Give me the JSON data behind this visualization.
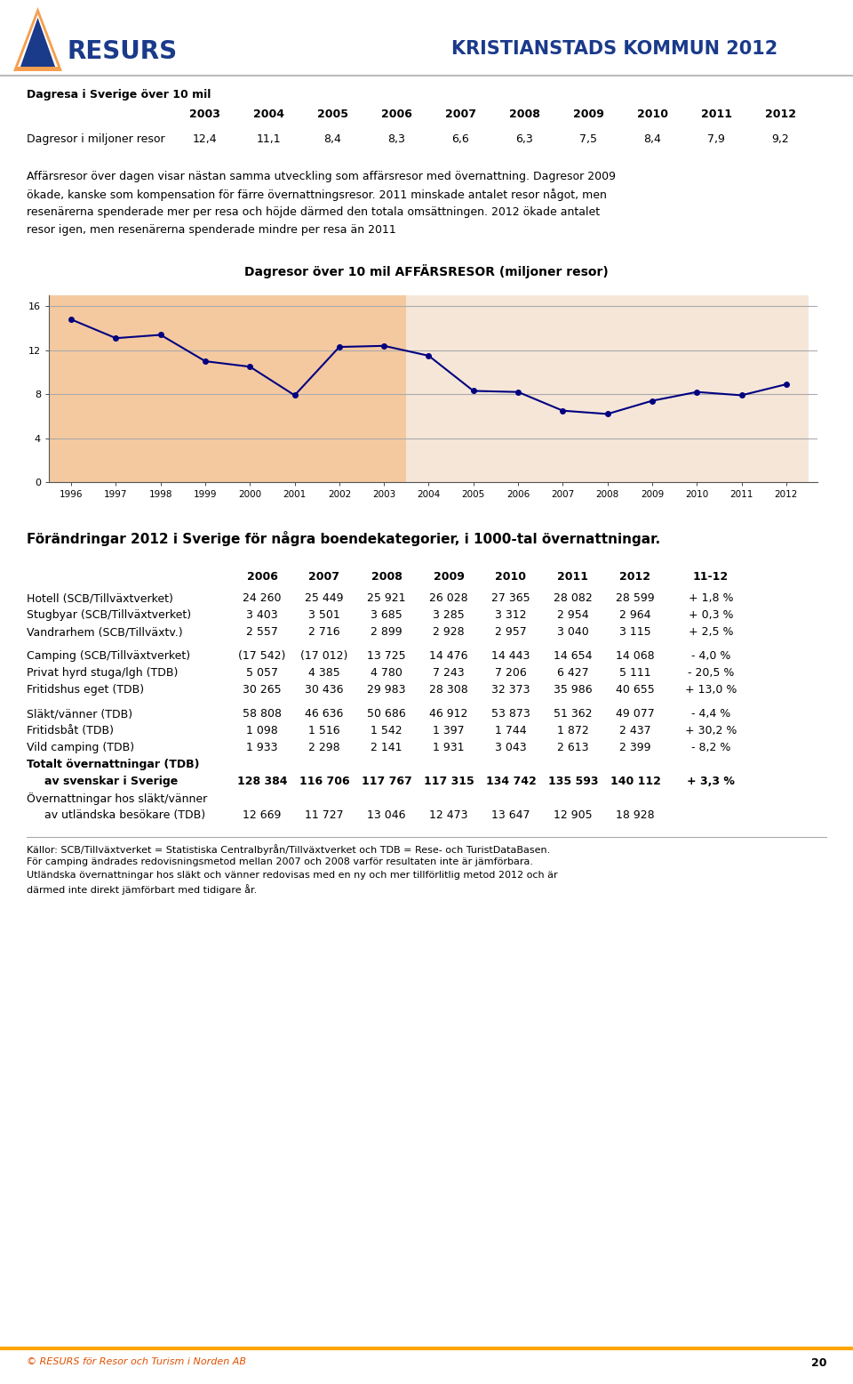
{
  "header_title": "KRISTIANSTADS KOMMUN 2012",
  "top_label1": "Dagresa i Sverige över 10 mil",
  "top_years": [
    "2003",
    "2004",
    "2005",
    "2006",
    "2007",
    "2008",
    "2009",
    "2010",
    "2011",
    "2012"
  ],
  "top_label2": "Dagresor i miljoner resor",
  "top_values": [
    "12,4",
    "11,1",
    "8,4",
    "8,3",
    "6,6",
    "6,3",
    "7,5",
    "8,4",
    "7,9",
    "9,2"
  ],
  "para1": "Affärsresor över dagen visar nästan samma utveckling som affärsresor med övernattning. Dagresor 2009",
  "para2": "ökade, kanske som kompensation för färre övernattningsresor. 2011 minskade antalet resor något, men",
  "para3": "resenärerna spenderade mer per resa och höjde därmed den totala omsättningen. 2012 ökade antalet",
  "para4": "resor igen, men resenärerna spenderade mindre per resa än 2011",
  "chart_title": "Dagresor över 10 mil AFFÄRSRESOR (miljoner resor)",
  "chart_years": [
    1996,
    1997,
    1998,
    1999,
    2000,
    2001,
    2002,
    2003,
    2004,
    2005,
    2006,
    2007,
    2008,
    2009,
    2010,
    2011,
    2012
  ],
  "chart_values": [
    14.8,
    13.1,
    13.4,
    11.0,
    10.5,
    7.9,
    12.3,
    12.4,
    11.5,
    8.3,
    8.2,
    6.5,
    6.2,
    7.4,
    8.2,
    7.9,
    8.9
  ],
  "chart_ylim": [
    0,
    17
  ],
  "chart_yticks": [
    0,
    4,
    8,
    12,
    16
  ],
  "bg_orange": "#F5C9A0",
  "bg_peach": "#F5E6D8",
  "line_color": "#000080",
  "section_title": "Förändringar 2012 i Sverige för några boendekategorier, i 1000-tal övernattningar.",
  "table_col_headers": [
    "2006",
    "2007",
    "2008",
    "2009",
    "2010",
    "2011",
    "2012",
    "11-12"
  ],
  "table_rows": [
    {
      "label": "Hotell (SCB/Tillväxtverket)",
      "bold": false,
      "indent": false,
      "data": [
        "24 260",
        "25 449",
        "25 921",
        "26 028",
        "27 365",
        "28 082",
        "28 599",
        "+ 1,8 %"
      ]
    },
    {
      "label": "Stugbyar (SCB/Tillväxtverket)",
      "bold": false,
      "indent": false,
      "data": [
        "3 403",
        "3 501",
        "3 685",
        "3 285",
        "3 312",
        "2 954",
        "2 964",
        "+ 0,3 %"
      ]
    },
    {
      "label": "Vandrarhem (SCB/Tillväxtv.)",
      "bold": false,
      "indent": false,
      "data": [
        "2 557",
        "2 716",
        "2 899",
        "2 928",
        "2 957",
        "3 040",
        "3 115",
        "+ 2,5 %"
      ]
    },
    {
      "label": "",
      "bold": false,
      "indent": false,
      "data": []
    },
    {
      "label": "Camping (SCB/Tillväxtverket)",
      "bold": false,
      "indent": false,
      "data": [
        "(17 542)",
        "(17 012)",
        "13 725",
        "14 476",
        "14 443",
        "14 654",
        "14 068",
        "- 4,0 %"
      ]
    },
    {
      "label": "Privat hyrd stuga/lgh (TDB)",
      "bold": false,
      "indent": false,
      "data": [
        "5 057",
        "4 385",
        "4 780",
        "7 243",
        "7 206",
        "6 427",
        "5 111",
        "- 20,5 %"
      ]
    },
    {
      "label": "Fritidshus eget (TDB)",
      "bold": false,
      "indent": false,
      "data": [
        "30 265",
        "30 436",
        "29 983",
        "28 308",
        "32 373",
        "35 986",
        "40 655",
        "+ 13,0 %"
      ]
    },
    {
      "label": "",
      "bold": false,
      "indent": false,
      "data": []
    },
    {
      "label": "Släkt/vänner (TDB)",
      "bold": false,
      "indent": false,
      "data": [
        "58 808",
        "46 636",
        "50 686",
        "46 912",
        "53 873",
        "51 362",
        "49 077",
        "- 4,4 %"
      ]
    },
    {
      "label": "Fritidsbåt (TDB)",
      "bold": false,
      "indent": false,
      "data": [
        "1 098",
        "1 516",
        "1 542",
        "1 397",
        "1 744",
        "1 872",
        "2 437",
        "+ 30,2 %"
      ]
    },
    {
      "label": "Vild camping (TDB)",
      "bold": false,
      "indent": false,
      "data": [
        "1 933",
        "2 298",
        "2 141",
        "1 931",
        "3 043",
        "2 613",
        "2 399",
        "- 8,2 %"
      ]
    },
    {
      "label": "Totalt övernattningar (TDB)",
      "bold": true,
      "indent": false,
      "data": []
    },
    {
      "label": "av svenskar i Sverige",
      "bold": true,
      "indent": true,
      "data": [
        "128 384",
        "116 706",
        "117 767",
        "117 315",
        "134 742",
        "135 593",
        "140 112",
        "+ 3,3 %"
      ]
    },
    {
      "label": "Övernattningar hos släkt/vänner",
      "bold": false,
      "indent": false,
      "data": []
    },
    {
      "label": "av utländska besökare (TDB)",
      "bold": false,
      "indent": true,
      "data": [
        "12 669",
        "11 727",
        "13 046",
        "12 473",
        "13 647",
        "12 905",
        "18 928",
        ""
      ]
    }
  ],
  "footer_note1": "Källor: SCB/Tillväxtverket = Statistiska Centralbyrån/Tillväxtverket och TDB = Rese- och TuristDataBasen.",
  "footer_note2": "För camping ändrades redovisningsmetod mellan 2007 och 2008 varför resultaten inte är jämförbara.",
  "footer_note3": "Utländska övernattningar hos släkt och vänner redovisas med en ny och mer tillförlitlig metod 2012 och är",
  "footer_note4": "därmed inte direkt jämförbart med tidigare år.",
  "footer_bottom_left": "© RESURS för Resor och Turism i Norden AB",
  "footer_bottom_right": "20"
}
